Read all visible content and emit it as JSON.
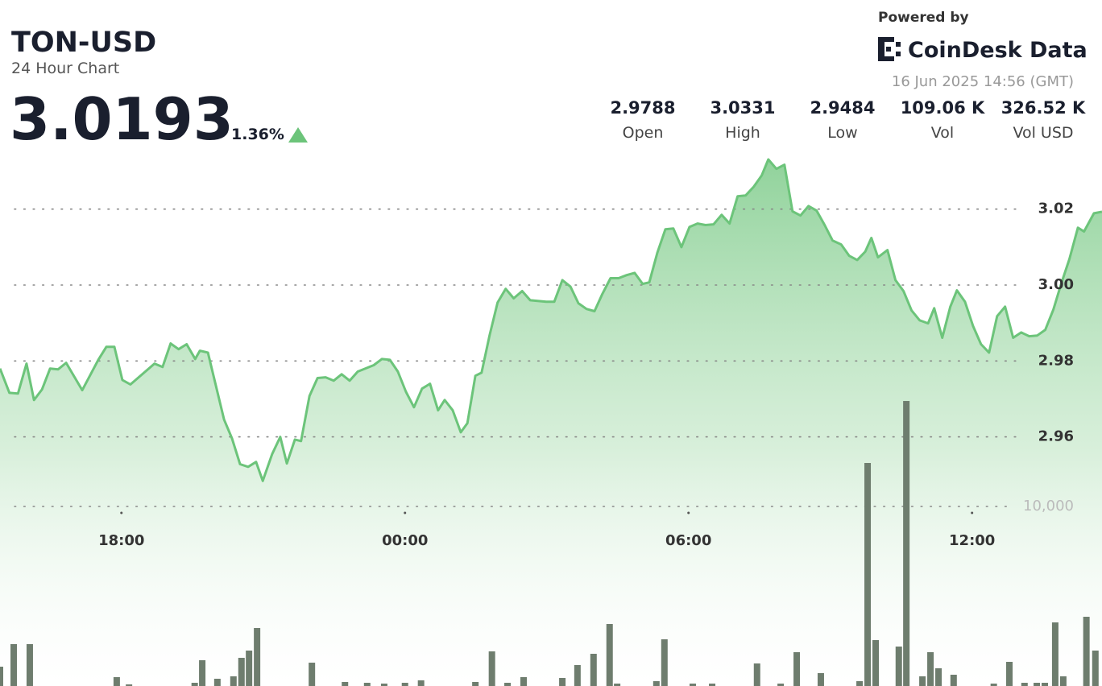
{
  "header": {
    "symbol": "TON-USD",
    "subtitle": "24 Hour Chart",
    "price": 3.0193,
    "change": "1.36%"
  },
  "branding": {
    "powered_by": "Powered by",
    "logo": "CoinDesk Data",
    "timestamp": "16 Jun 2025 14:56 (GMT)"
  },
  "stats": [
    {
      "value": 2.9788,
      "label": "Open"
    },
    {
      "value": 3.0331,
      "label": "High"
    },
    {
      "value": 2.9484,
      "label": "Low"
    },
    {
      "value": "109.06 K",
      "label": "Vol"
    },
    {
      "value": "326.52 K",
      "label": "Vol USD"
    }
  ],
  "chart_data": {
    "type": "area",
    "color": "#6cc47a",
    "grid": true,
    "x": [
      15.43,
      15.63,
      15.81,
      15.99,
      16.15,
      16.32,
      16.49,
      16.66,
      16.83,
      17.17,
      17.51,
      17.68,
      17.85,
      18.02,
      18.19,
      18.7,
      18.87,
      19.04,
      19.21,
      19.38,
      19.56,
      19.66,
      19.83,
      20.17,
      20.34,
      20.51,
      20.68,
      20.85,
      20.99,
      21.19,
      21.36,
      21.5,
      21.67,
      21.8,
      21.98,
      22.15,
      22.32,
      22.49,
      22.66,
      22.83,
      23.0,
      23.34,
      23.51,
      23.68,
      23.85,
      24.02,
      24.19,
      24.36,
      24.53,
      24.7,
      24.84,
      25.01,
      25.18,
      25.32,
      25.49,
      25.62,
      25.79,
      25.96,
      26.13,
      26.3,
      26.48,
      26.65,
      26.99,
      27.16,
      27.33,
      27.5,
      27.67,
      27.84,
      28.01,
      28.18,
      28.35,
      28.52,
      28.69,
      28.86,
      29.03,
      29.17,
      29.34,
      29.51,
      29.68,
      29.85,
      30.02,
      30.19,
      30.36,
      30.53,
      30.7,
      30.87,
      31.04,
      31.21,
      31.38,
      31.55,
      31.69,
      31.86,
      32.03,
      32.2,
      32.37,
      32.54,
      32.71,
      32.88,
      33.05,
      33.23,
      33.4,
      33.57,
      33.74,
      33.87,
      34.01,
      34.21,
      34.38,
      34.55,
      34.72,
      34.89,
      35.07,
      35.2,
      35.37,
      35.54,
      35.68,
      35.85,
      36.02,
      36.19,
      36.36,
      36.53,
      36.7,
      36.87,
      37.04,
      37.21,
      37.38,
      37.55,
      37.72,
      37.89,
      38.06,
      38.24,
      38.37,
      38.58,
      38.75
    ],
    "values": [
      2.978,
      2.9716,
      2.9714,
      2.9793,
      2.9697,
      2.9725,
      2.978,
      2.9778,
      2.9795,
      2.9723,
      2.9803,
      2.9837,
      2.9837,
      2.975,
      2.9738,
      2.9793,
      2.9784,
      2.9846,
      2.9831,
      2.9844,
      2.9805,
      2.9827,
      2.9822,
      2.9646,
      2.9596,
      2.9528,
      2.9521,
      2.9534,
      2.9484,
      2.9555,
      2.96,
      2.953,
      2.9593,
      2.9589,
      2.9708,
      2.9755,
      2.9757,
      2.9748,
      2.9765,
      2.9748,
      2.9772,
      2.9789,
      2.9805,
      2.9803,
      2.9772,
      2.9719,
      2.9678,
      2.9727,
      2.974,
      2.967,
      2.9697,
      2.967,
      2.9612,
      2.9636,
      2.9761,
      2.9769,
      2.9867,
      2.9954,
      2.999,
      2.9965,
      2.9984,
      2.996,
      2.9956,
      2.9956,
      3.0013,
      2.9996,
      2.9952,
      2.9937,
      2.9931,
      2.9977,
      3.0018,
      3.0018,
      3.0026,
      3.0032,
      3.0003,
      3.0007,
      3.0085,
      3.0147,
      3.0149,
      3.01,
      3.0153,
      3.0162,
      3.0158,
      3.016,
      3.0185,
      3.0162,
      3.0234,
      3.0236,
      3.0259,
      3.0289,
      3.0331,
      3.0306,
      3.0317,
      3.0194,
      3.0183,
      3.0208,
      3.0196,
      3.0158,
      3.0117,
      3.0107,
      3.0077,
      3.0066,
      3.0088,
      3.0124,
      3.0073,
      3.0092,
      3.0013,
      2.9984,
      2.9933,
      2.9907,
      2.9899,
      2.9939,
      2.9861,
      2.9943,
      2.9986,
      2.9956,
      2.9892,
      2.9844,
      2.9822,
      2.9918,
      2.9943,
      2.9861,
      2.9875,
      2.9865,
      2.9867,
      2.9882,
      2.9935,
      3.0005,
      3.0068,
      3.0151,
      3.0141,
      3.0189,
      3.0193
    ],
    "xlim": [
      15.43,
      38.75
    ],
    "xticks": [
      {
        "value": 18,
        "label": "18:00"
      },
      {
        "value": 24,
        "label": "00:00"
      },
      {
        "value": 30,
        "label": "06:00"
      },
      {
        "value": 36,
        "label": "12:00"
      }
    ],
    "ylim": [
      2.895,
      3.035
    ],
    "yticks": [
      {
        "value": 3.02,
        "label": "3.02"
      },
      {
        "value": 3,
        "label": "3.00"
      },
      2.98,
      2.96
    ],
    "volume": {
      "type": "bar",
      "color": "#6e7d6e",
      "x": [
        15.43,
        15.72,
        16.06,
        17.9,
        18.16,
        19.55,
        19.71,
        20.03,
        20.37,
        20.54,
        20.7,
        20.87,
        22.03,
        22.73,
        23.2,
        23.56,
        24.0,
        24.34,
        25.49,
        25.84,
        26.17,
        26.51,
        27.33,
        27.65,
        27.99,
        28.33,
        28.49,
        29.32,
        29.49,
        30.09,
        30.5,
        31.45,
        31.95,
        32.29,
        32.8,
        33.62,
        33.79,
        33.96,
        34.45,
        34.61,
        34.95,
        35.12,
        35.29,
        35.61,
        36.46,
        36.79,
        37.11,
        37.37,
        37.54,
        37.76,
        37.93,
        38.42,
        38.61
      ],
      "values": [
        1076,
        2332,
        2332,
        493,
        90,
        179,
        1435,
        404,
        538,
        1569,
        1973,
        3229,
        1300,
        224,
        179,
        135,
        179,
        314,
        224,
        1928,
        179,
        493,
        448,
        1166,
        1794,
        3453,
        135,
        269,
        2601,
        135,
        135,
        1256,
        135,
        1883,
        717,
        269,
        12421,
        2556,
        2197,
        15873,
        538,
        1883,
        987,
        628,
        135,
        1345,
        179,
        179,
        179,
        3542,
        538,
        3856,
        1973
      ],
      "ylim": [
        0,
        20000
      ],
      "yticks": [
        {
          "value": 10000,
          "label": "10,000"
        }
      ]
    }
  }
}
